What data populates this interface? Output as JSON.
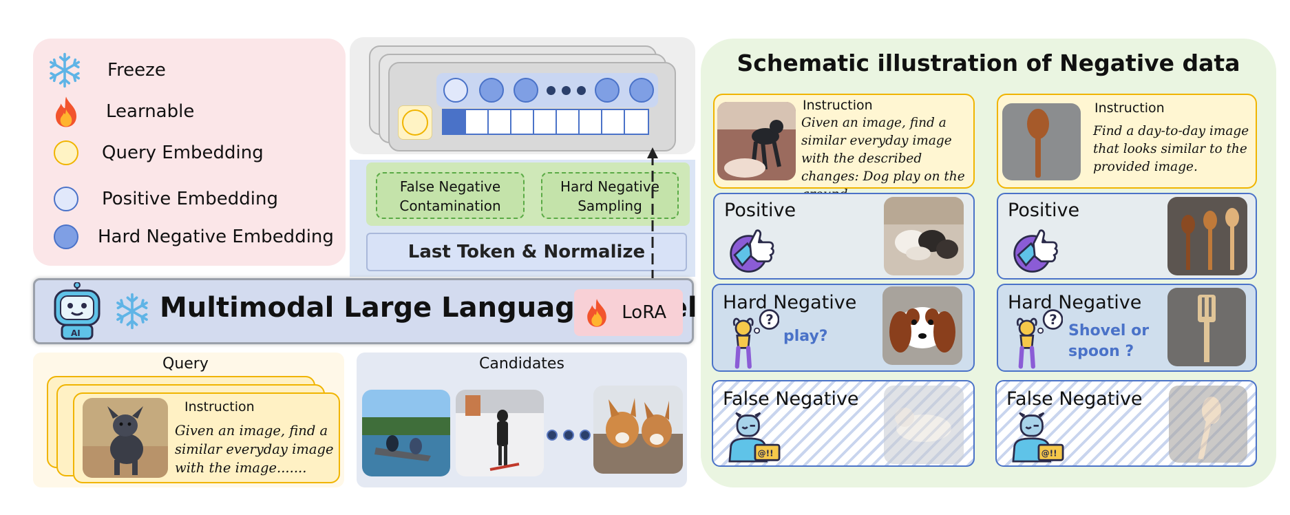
{
  "legend": {
    "items": [
      {
        "icon": "snowflake-icon",
        "label": "Freeze"
      },
      {
        "icon": "fire-icon",
        "label": "Learnable"
      },
      {
        "icon": "query-embedding-circle",
        "label": "Query Embedding"
      },
      {
        "icon": "positive-embedding-circle",
        "label": "Positive Embedding"
      },
      {
        "icon": "hard-negative-embedding-circle",
        "label": "Hard Negative Embedding"
      }
    ]
  },
  "pipeline": {
    "false_negative_line1": "False Negative",
    "false_negative_line2": "Contamination",
    "hard_negative_line1": "Hard Negative",
    "hard_negative_line2": "Sampling",
    "last_token": "Last Token & Normalize",
    "mllm_title": "Multimodal Large Language Model",
    "lora": "LoRA",
    "robot_badge": "AI"
  },
  "query": {
    "label": "Query",
    "instruction_title": "Instruction",
    "instruction_text": "Given an image, find a similar everyday image with the image......."
  },
  "candidates": {
    "label": "Candidates"
  },
  "schematic": {
    "title": "Schematic illustration of Negative data",
    "left": {
      "instruction_title": "Instruction",
      "instruction_text": "Given an image, find a similar everyday image with the described changes: Dog play on the ground.",
      "positive": "Positive",
      "hard_negative": "Hard  Negative",
      "hard_question": "play?",
      "false_negative": "False Negative"
    },
    "right": {
      "instruction_title": "Instruction",
      "instruction_text": "Find a day-to-day image that looks similar to the provided image.",
      "positive": "Positive",
      "hard_negative": "Hard  Negative",
      "hard_question_line1": "Shovel or",
      "hard_question_line2": "spoon ?",
      "false_negative": "False Negative"
    }
  },
  "colors": {
    "positive_blue": "#4a72c8",
    "query_yellow": "#f0b400",
    "legend_bg": "#fbe6e8",
    "schematic_bg": "#eaf5e1"
  }
}
